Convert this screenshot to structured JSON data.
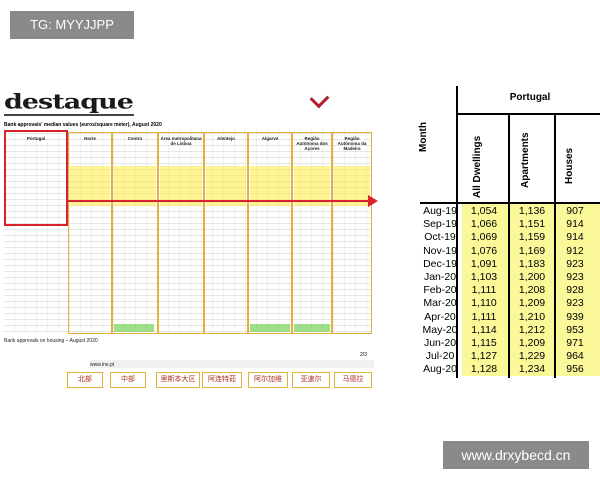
{
  "overlays": {
    "tag": "TG: MYYJJPP",
    "watermark": "www.drxybecd.cn"
  },
  "document": {
    "logo": "destaque",
    "caption": "Bank approvals' median values (euros/square meter), August 2020",
    "footer_left": "Bank approvals on housing – August 2020",
    "footer_url": "www.ine.pt",
    "page_number": "2/3",
    "region_titles": [
      "Portugal",
      "Norte",
      "Centro",
      "Área metropolitana de Lisboa",
      "Alentejo",
      "Algarve",
      "Região Autónoma dos Açores",
      "Região Autónoma da Madeira"
    ],
    "city_labels": [
      "北部",
      "中部",
      "里斯本大区",
      "阿连特茹",
      "阿尔加维",
      "亚速尔",
      "马德拉"
    ]
  },
  "table": {
    "region": "Portugal",
    "month_header": "Month",
    "column_headers": [
      "All Dwellings",
      "Apartments",
      "Houses"
    ],
    "rows": [
      [
        "Aug-19",
        "1,054",
        "1,136",
        "907"
      ],
      [
        "Sep-19",
        "1,066",
        "1,151",
        "914"
      ],
      [
        "Oct-19",
        "1,069",
        "1,159",
        "914"
      ],
      [
        "Nov-19",
        "1,076",
        "1,169",
        "912"
      ],
      [
        "Dec-19",
        "1,091",
        "1,183",
        "923"
      ],
      [
        "Jan-20",
        "1,103",
        "1,200",
        "923"
      ],
      [
        "Feb-20",
        "1,111",
        "1,208",
        "928"
      ],
      [
        "Mar-20",
        "1,110",
        "1,209",
        "923"
      ],
      [
        "Apr-20",
        "1,111",
        "1,210",
        "939"
      ],
      [
        "May-20",
        "1,114",
        "1,212",
        "953"
      ],
      [
        "Jun-20",
        "1,115",
        "1,209",
        "971"
      ],
      [
        "Jul-20",
        "1,127",
        "1,229",
        "964"
      ],
      [
        "Aug-20",
        "1,128",
        "1,234",
        "956"
      ]
    ]
  },
  "colors": {
    "highlight_yellow": "#fbf89a",
    "red_marker": "#d8232a",
    "gold_box": "#e2b23a"
  }
}
